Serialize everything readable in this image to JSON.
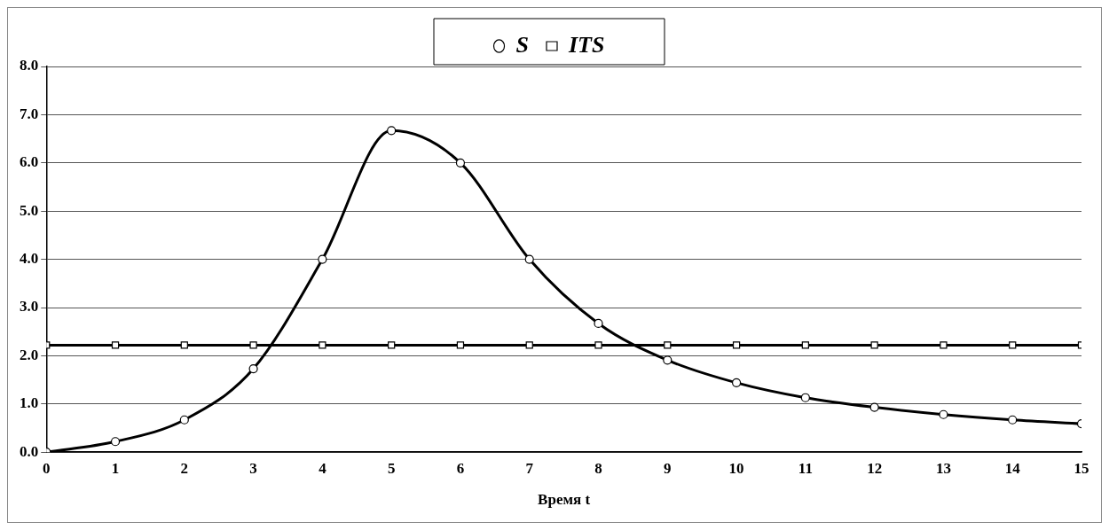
{
  "chart_data": {
    "type": "line",
    "xlabel": "Время t",
    "x": [
      0,
      1,
      2,
      3,
      4,
      5,
      6,
      7,
      8,
      9,
      10,
      11,
      12,
      13,
      14,
      15
    ],
    "series": [
      {
        "name": "S",
        "color": "#000000",
        "marker": "circle",
        "values": [
          0,
          0.22,
          0.67,
          1.73,
          4.0,
          6.67,
          6.0,
          4.0,
          2.67,
          1.91,
          1.44,
          1.13,
          0.93,
          0.78,
          0.67,
          0.59
        ]
      },
      {
        "name": "ITS",
        "color": "#000000",
        "marker": "square",
        "values": [
          2.22,
          2.22,
          2.22,
          2.22,
          2.22,
          2.22,
          2.22,
          2.22,
          2.22,
          2.22,
          2.22,
          2.22,
          2.22,
          2.22,
          2.22,
          2.22
        ]
      }
    ],
    "xlim": [
      0,
      15
    ],
    "xticks": [
      0,
      1,
      2,
      3,
      4,
      5,
      6,
      7,
      8,
      9,
      10,
      11,
      12,
      13,
      14,
      15
    ],
    "ylim": [
      0,
      8
    ],
    "yticks": [
      {
        "value": 0,
        "label": "0.0"
      },
      {
        "value": 1,
        "label": "1.0"
      },
      {
        "value": 2,
        "label": "2.0"
      },
      {
        "value": 3,
        "label": "3.0"
      },
      {
        "value": 4,
        "label": "4.0"
      },
      {
        "value": 5,
        "label": "5.0"
      },
      {
        "value": 6,
        "label": "6.0"
      },
      {
        "value": 7,
        "label": "7.0"
      },
      {
        "value": 8,
        "label": "8.0"
      }
    ],
    "grid": "y",
    "legend": "top",
    "line_style": "solid"
  }
}
